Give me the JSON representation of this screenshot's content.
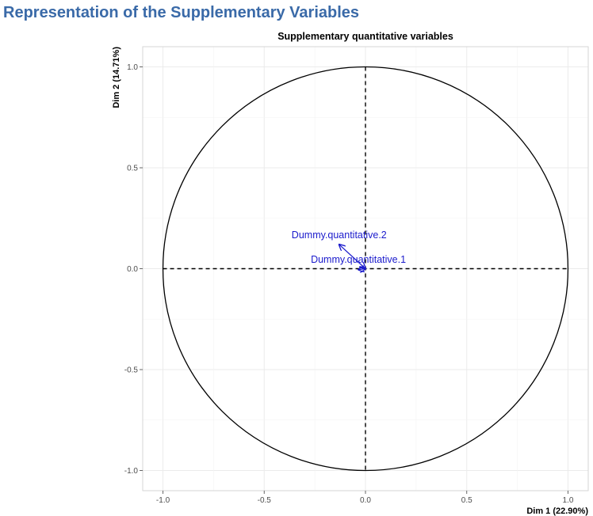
{
  "page": {
    "heading": "Representation of the Supplementary Variables",
    "heading_color": "#3a6aa8"
  },
  "chart_data": {
    "type": "scatter",
    "title": "Supplementary quantitative variables",
    "xlabel": "Dim 1 (22.90%)",
    "ylabel": "Dim 2 (14.71%)",
    "xlim": [
      -1.1,
      1.1
    ],
    "ylim": [
      -1.1,
      1.1
    ],
    "x_ticks": [
      "-1.0",
      "-0.5",
      "0.0",
      "0.5",
      "1.0"
    ],
    "y_ticks": [
      "1.0",
      "0.5",
      "0.0",
      "-0.5",
      "-1.0"
    ],
    "x_tick_values": [
      -1.0,
      -0.5,
      0.0,
      0.5,
      1.0
    ],
    "y_tick_values": [
      1.0,
      0.5,
      0.0,
      -0.5,
      -1.0
    ],
    "grid": true,
    "correlation_circle_radius": 1.0,
    "arrow_color": "#1a1acc",
    "variables": [
      {
        "name": "Dummy.quantitative.2",
        "x": -0.13,
        "y": 0.12
      },
      {
        "name": "Dummy.quantitative.1",
        "x": -0.035,
        "y": -0.005
      }
    ]
  }
}
